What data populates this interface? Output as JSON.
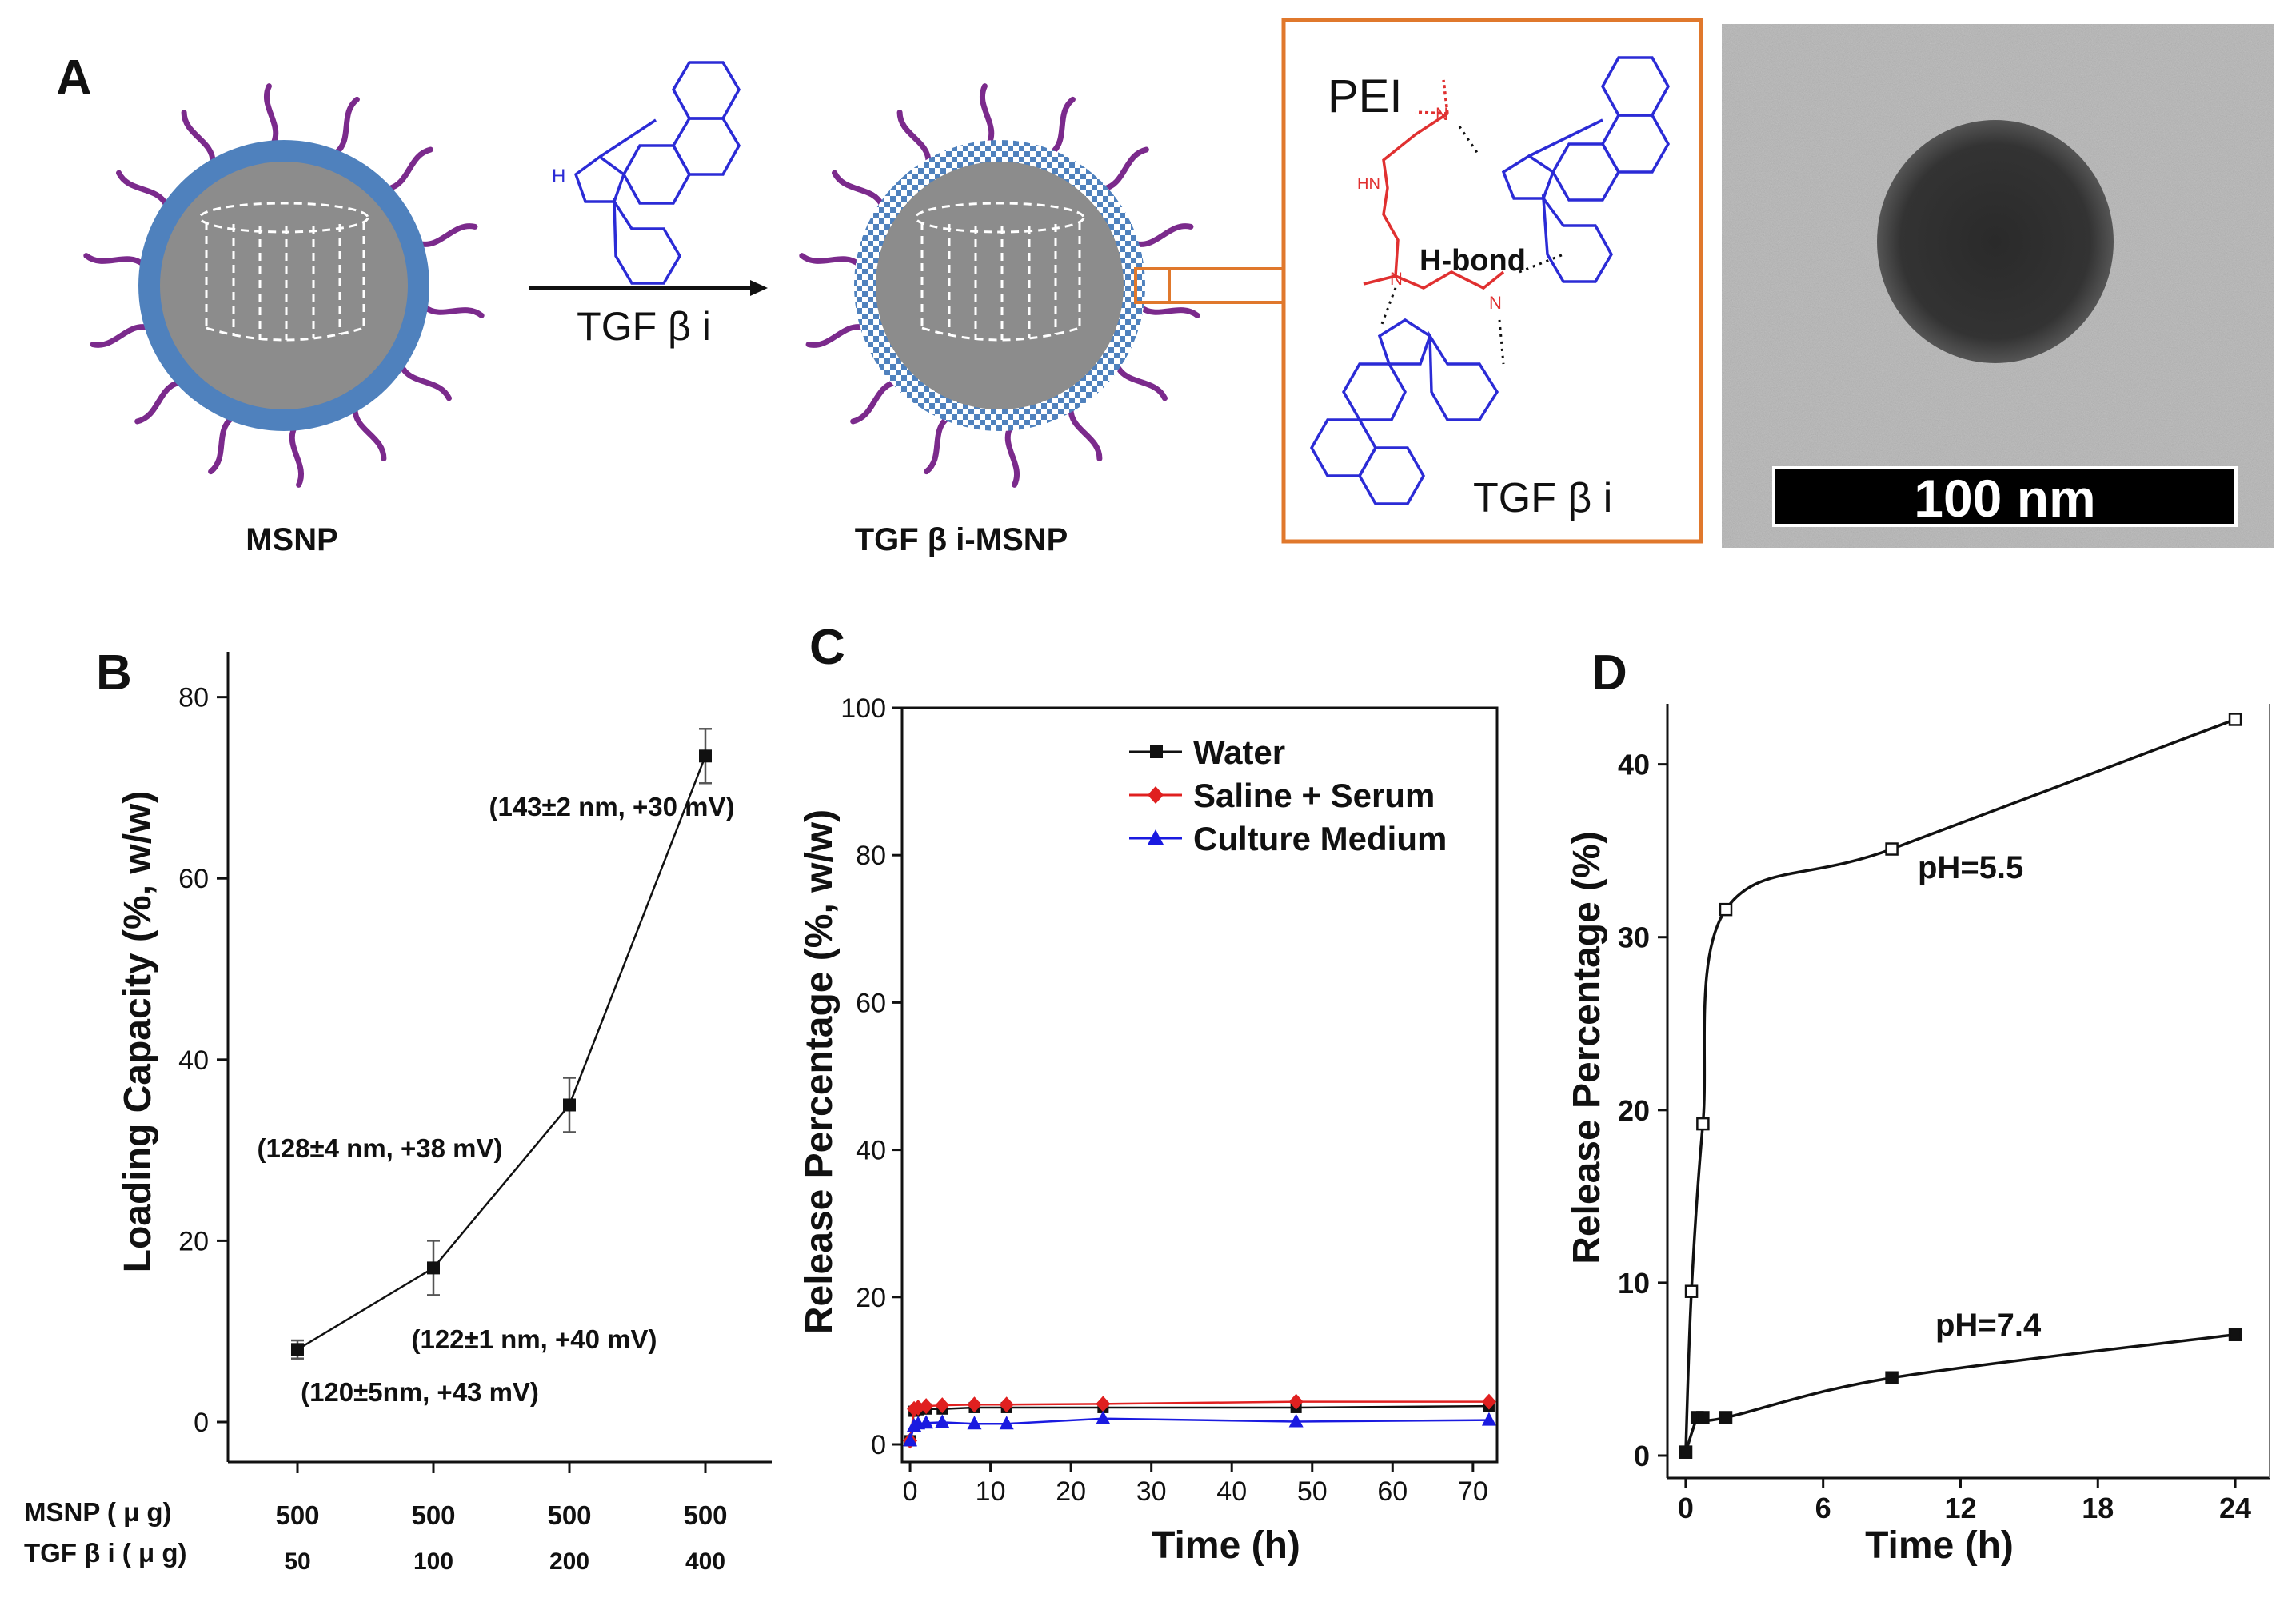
{
  "panel_labels": {
    "a": "A",
    "b": "B",
    "c": "C",
    "d": "D"
  },
  "panel_a": {
    "msnp_label": "MSNP",
    "arrow_label": "TGF β i",
    "loaded_label": "TGF β i-MSNP",
    "inset_pei": "PEI",
    "inset_hbond": "H-bond",
    "inset_tgf": "TGF β i",
    "atom_hn": "HN",
    "atom_n": "N",
    "atom_h": "H",
    "scale_bar": "100 nm",
    "colors": {
      "shell": "#4f81bd",
      "core": "#8c8c8c",
      "ligand": "#7b2a8c",
      "inset_border": "#e0782c",
      "molecule": "#2b2bd6",
      "pei": "#e03030"
    }
  },
  "chart_data": [
    {
      "id": "B",
      "type": "line",
      "title": "",
      "xlabel": "",
      "ylabel": "Loading Capacity (%, w/w)",
      "ylim": [
        0,
        85
      ],
      "yticks": [
        0,
        20,
        40,
        60,
        80
      ],
      "row_labels": [
        "MSNP ( μ g)",
        "TGF β i ( μ g)"
      ],
      "categories": [
        {
          "msnp": "500",
          "tgf": "50"
        },
        {
          "msnp": "500",
          "tgf": "100"
        },
        {
          "msnp": "500",
          "tgf": "200"
        },
        {
          "msnp": "500",
          "tgf": "400"
        }
      ],
      "values": [
        8,
        17,
        35,
        73.5
      ],
      "errors": [
        1,
        3,
        3,
        3
      ],
      "annotations": [
        "(120±5nm, +43 mV)",
        "(122±1 nm, +40 mV)",
        "(128±4 nm, +38 mV)",
        "(143±2 nm, +30 mV)"
      ]
    },
    {
      "id": "C",
      "type": "line",
      "title": "",
      "xlabel": "Time (h)",
      "ylabel": "Release Percentage (%, w/w)",
      "xlim": [
        -1,
        73
      ],
      "ylim": [
        0,
        100
      ],
      "xticks": [
        0,
        10,
        20,
        30,
        40,
        50,
        60,
        70
      ],
      "yticks": [
        0,
        20,
        40,
        60,
        80,
        100
      ],
      "legend_position": "top-right",
      "series": [
        {
          "name": "Water",
          "color": "#111111",
          "marker": "square",
          "x": [
            0,
            0.5,
            1,
            2,
            4,
            8,
            12,
            24,
            48,
            72
          ],
          "y": [
            0.5,
            4.5,
            4.7,
            4.8,
            4.8,
            5.0,
            5.0,
            5.0,
            5.0,
            5.2
          ]
        },
        {
          "name": "Saline + Serum",
          "color": "#e02020",
          "marker": "diamond",
          "x": [
            0,
            0.5,
            1,
            2,
            4,
            8,
            12,
            24,
            48,
            72
          ],
          "y": [
            0.5,
            4.8,
            5.0,
            5.2,
            5.3,
            5.4,
            5.4,
            5.5,
            5.8,
            5.8
          ]
        },
        {
          "name": "Culture Medium",
          "color": "#1a1ae0",
          "marker": "triangle",
          "x": [
            0,
            0.5,
            1,
            2,
            4,
            8,
            12,
            24,
            48,
            72
          ],
          "y": [
            0.5,
            2.5,
            2.8,
            2.9,
            3.0,
            2.8,
            2.8,
            3.5,
            3.1,
            3.3
          ]
        }
      ]
    },
    {
      "id": "D",
      "type": "line",
      "title": "",
      "xlabel": "Time (h)",
      "ylabel": "Release Percentage (%)",
      "xlim": [
        -0.8,
        25.5
      ],
      "ylim": [
        0,
        43.5
      ],
      "xticks": [
        0,
        6,
        12,
        18,
        24
      ],
      "yticks": [
        0,
        10,
        20,
        30,
        40
      ],
      "series": [
        {
          "name": "pH=5.5",
          "label": "pH=5.5",
          "filled": false,
          "x": [
            0,
            0.25,
            0.75,
            1.75,
            9,
            24
          ],
          "y": [
            0.2,
            9.5,
            19.2,
            31.6,
            35.1,
            42.6
          ]
        },
        {
          "name": "pH=7.4",
          "label": "pH=7.4",
          "filled": true,
          "x": [
            0,
            0.5,
            0.75,
            1.75,
            9,
            24
          ],
          "y": [
            0.2,
            2.2,
            2.2,
            2.2,
            4.5,
            7.0
          ]
        }
      ]
    }
  ]
}
